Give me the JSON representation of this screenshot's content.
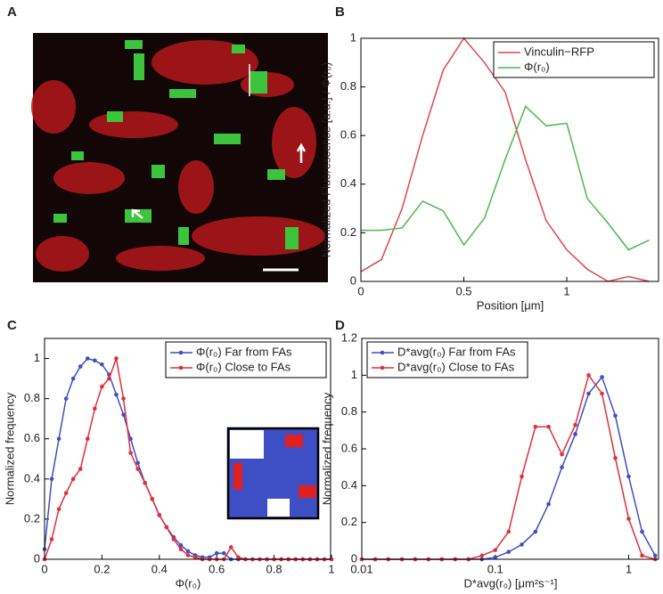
{
  "panels": [
    "A",
    "B",
    "C",
    "D"
  ],
  "chart_data": [
    {
      "type": "line",
      "xlabel": "Position [μm]",
      "ylabel": "Normalized Fluorescence [a.u.] / Φ(r₀)",
      "x": [
        0,
        0.1,
        0.2,
        0.3,
        0.4,
        0.5,
        0.6,
        0.7,
        0.8,
        0.9,
        1.0,
        1.1,
        1.2,
        1.3,
        1.4
      ],
      "series": [
        {
          "name": "Vinculin−RFP",
          "color": "#e0474c",
          "values": [
            0.04,
            0.09,
            0.3,
            0.6,
            0.87,
            1.0,
            0.9,
            0.78,
            0.5,
            0.25,
            0.13,
            0.05,
            0.0,
            0.02,
            0.0
          ]
        },
        {
          "name": "Φ(r₀)",
          "color": "#4cb84c",
          "values": [
            0.21,
            0.21,
            0.22,
            0.33,
            0.29,
            0.15,
            0.26,
            0.5,
            0.72,
            0.64,
            0.65,
            0.34,
            0.24,
            0.13,
            0.17
          ]
        }
      ],
      "xlim": [
        0,
        1.45
      ],
      "xticks": [
        0,
        0.5,
        1
      ],
      "ylim": [
        0,
        1
      ],
      "yticks": [
        0,
        0.2,
        0.4,
        0.6,
        0.8,
        1
      ],
      "legend": "top-right",
      "markers": false,
      "log_x": false
    },
    {
      "type": "line",
      "xlabel": "Φ(r₀)",
      "ylabel": "Normalized frequency",
      "x": [
        0,
        0.025,
        0.05,
        0.075,
        0.1,
        0.125,
        0.15,
        0.175,
        0.2,
        0.225,
        0.25,
        0.275,
        0.3,
        0.325,
        0.35,
        0.375,
        0.4,
        0.425,
        0.45,
        0.475,
        0.5,
        0.525,
        0.55,
        0.575,
        0.6,
        0.625,
        0.65,
        0.675,
        0.7,
        0.725,
        0.75,
        0.775,
        0.8,
        0.825,
        0.85,
        0.875,
        0.9,
        0.925,
        0.95,
        0.975,
        1
      ],
      "series": [
        {
          "name": "Φ(r₀) Far from FAs",
          "color": "#3f4fc4",
          "values": [
            0.05,
            0.4,
            0.6,
            0.8,
            0.9,
            0.96,
            1.0,
            0.99,
            0.97,
            0.92,
            0.82,
            0.72,
            0.6,
            0.48,
            0.38,
            0.3,
            0.22,
            0.16,
            0.11,
            0.07,
            0.04,
            0.02,
            0.01,
            0.01,
            0.03,
            0.03,
            0,
            0,
            0,
            0,
            0,
            0,
            0,
            0,
            0,
            0,
            0,
            0,
            0,
            0,
            0
          ]
        },
        {
          "name": "Φ(r₀) Close to FAs",
          "color": "#e0303a",
          "values": [
            0,
            0.1,
            0.25,
            0.33,
            0.4,
            0.45,
            0.6,
            0.75,
            0.86,
            0.9,
            1.0,
            0.8,
            0.53,
            0.45,
            0.38,
            0.3,
            0.22,
            0.16,
            0.1,
            0.05,
            0.02,
            0.01,
            0,
            0,
            0,
            0,
            0.06,
            0.01,
            0,
            0,
            0,
            0,
            0,
            0,
            0,
            0,
            0,
            0,
            0,
            0,
            0
          ]
        }
      ],
      "xlim": [
        0,
        1
      ],
      "xticks": [
        0,
        0.2,
        0.4,
        0.6,
        0.8,
        1
      ],
      "ylim": [
        0,
        1.1
      ],
      "yticks": [
        0,
        0.2,
        0.4,
        0.6,
        0.8,
        1
      ],
      "legend": "top-right",
      "markers": true,
      "log_x": false
    },
    {
      "type": "line",
      "xlabel": "D*avg(r₀) [μm²s⁻¹]",
      "ylabel": "Normalized frequency",
      "x": [
        0.01,
        0.0126,
        0.0158,
        0.02,
        0.0251,
        0.0316,
        0.0398,
        0.0501,
        0.0631,
        0.0794,
        0.1,
        0.126,
        0.158,
        0.2,
        0.251,
        0.316,
        0.398,
        0.501,
        0.631,
        0.794,
        1.0,
        1.26,
        1.58
      ],
      "series": [
        {
          "name": "D*avg(r₀) Far from FAs",
          "color": "#3f4fc4",
          "values": [
            0,
            0,
            0,
            0,
            0,
            0,
            0,
            0,
            0,
            0,
            0.01,
            0.04,
            0.08,
            0.15,
            0.3,
            0.5,
            0.68,
            0.9,
            0.99,
            0.78,
            0.45,
            0.15,
            0.02
          ]
        },
        {
          "name": "D*avg(r₀) Close to FAs",
          "color": "#e0303a",
          "values": [
            0,
            0,
            0,
            0,
            0,
            0,
            0,
            0,
            0,
            0.02,
            0.05,
            0.15,
            0.45,
            0.72,
            0.72,
            0.57,
            0.73,
            1.0,
            0.9,
            0.55,
            0.22,
            0.02,
            0
          ]
        }
      ],
      "xlim": [
        0.01,
        1.7
      ],
      "xticks": [
        0.01,
        0.1,
        1
      ],
      "ylim": [
        0,
        1.2
      ],
      "yticks": [
        0,
        0.2,
        0.4,
        0.6,
        0.8,
        1,
        1.2
      ],
      "legend": "top-left",
      "markers": true,
      "log_x": true
    }
  ]
}
